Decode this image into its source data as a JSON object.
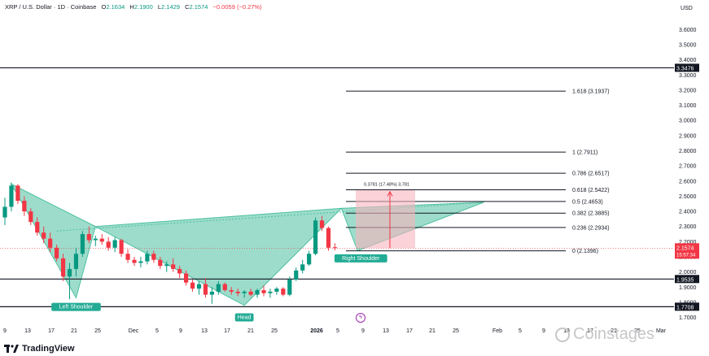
{
  "header": {
    "symbol": "XRP / U.S. Dollar · 1D · Coinbase",
    "open_label": "O",
    "open": "2.1634",
    "high_label": "H",
    "high": "2.1900",
    "low_label": "L",
    "low": "2.1429",
    "close_label": "C",
    "close": "2.1574",
    "change": "−0.0059 (−0.27%)"
  },
  "brand": {
    "tradingview": "TradingView",
    "watermark": "Coinstages"
  },
  "chart_data": {
    "type": "candlestick",
    "y_axis": {
      "unit": "USD",
      "ticks": [
        "3.6000",
        "3.5000",
        "3.4000",
        "3.3000",
        "3.2000",
        "3.1000",
        "3.0000",
        "2.9000",
        "2.8000",
        "2.7000",
        "2.6000",
        "2.5000",
        "2.4000",
        "2.3000",
        "2.2000",
        "2.1000",
        "2.0000",
        "1.9000",
        "1.8000",
        "1.7000"
      ],
      "ylim": [
        1.66,
        3.72
      ]
    },
    "x_axis": {
      "ticks": [
        "9",
        "13",
        "17",
        "21",
        "25",
        "Dec",
        "5",
        "9",
        "13",
        "17",
        "21",
        "25",
        "2026",
        "5",
        "9",
        "13",
        "17",
        "21",
        "25",
        "Feb",
        "5",
        "9",
        "13",
        "17",
        "21",
        "25",
        "Mar"
      ]
    },
    "candles": [
      [
        2.36,
        2.49,
        2.31,
        2.43
      ],
      [
        2.43,
        2.59,
        2.4,
        2.57
      ],
      [
        2.57,
        2.58,
        2.45,
        2.47
      ],
      [
        2.47,
        2.5,
        2.37,
        2.4
      ],
      [
        2.4,
        2.42,
        2.31,
        2.33
      ],
      [
        2.33,
        2.36,
        2.24,
        2.26
      ],
      [
        2.26,
        2.3,
        2.19,
        2.22
      ],
      [
        2.22,
        2.26,
        2.13,
        2.16
      ],
      [
        2.16,
        2.18,
        2.07,
        2.09
      ],
      [
        2.09,
        2.12,
        1.94,
        1.97
      ],
      [
        1.97,
        2.06,
        1.82,
        2.02
      ],
      [
        2.02,
        2.16,
        1.97,
        2.12
      ],
      [
        2.12,
        2.27,
        2.1,
        2.25
      ],
      [
        2.25,
        2.3,
        2.19,
        2.21
      ],
      [
        2.21,
        2.24,
        2.17,
        2.22
      ],
      [
        2.22,
        2.25,
        2.18,
        2.2
      ],
      [
        2.2,
        2.23,
        2.14,
        2.16
      ],
      [
        2.16,
        2.23,
        2.13,
        2.21
      ],
      [
        2.21,
        2.22,
        2.1,
        2.12
      ],
      [
        2.12,
        2.15,
        2.06,
        2.08
      ],
      [
        2.08,
        2.1,
        2.04,
        2.06
      ],
      [
        2.06,
        2.1,
        2.03,
        2.07
      ],
      [
        2.07,
        2.14,
        2.05,
        2.12
      ],
      [
        2.12,
        2.14,
        2.06,
        2.08
      ],
      [
        2.08,
        2.1,
        2.02,
        2.04
      ],
      [
        2.04,
        2.07,
        2.0,
        2.05
      ],
      [
        2.05,
        2.09,
        2.0,
        2.02
      ],
      [
        2.02,
        2.04,
        1.96,
        1.99
      ],
      [
        1.99,
        2.01,
        1.91,
        1.93
      ],
      [
        1.93,
        1.95,
        1.87,
        1.89
      ],
      [
        1.89,
        1.94,
        1.85,
        1.92
      ],
      [
        1.92,
        1.96,
        1.83,
        1.85
      ],
      [
        1.85,
        1.9,
        1.79,
        1.87
      ],
      [
        1.87,
        1.94,
        1.85,
        1.92
      ],
      [
        1.92,
        1.93,
        1.87,
        1.88
      ],
      [
        1.88,
        1.9,
        1.85,
        1.87
      ],
      [
        1.87,
        1.89,
        1.84,
        1.86
      ],
      [
        1.86,
        1.88,
        1.83,
        1.87
      ],
      [
        1.87,
        1.89,
        1.84,
        1.85
      ],
      [
        1.85,
        1.89,
        1.83,
        1.88
      ],
      [
        1.88,
        1.91,
        1.84,
        1.86
      ],
      [
        1.86,
        1.89,
        1.83,
        1.87
      ],
      [
        1.87,
        1.9,
        1.85,
        1.89
      ],
      [
        1.89,
        1.9,
        1.84,
        1.85
      ],
      [
        1.85,
        1.97,
        1.84,
        1.95
      ],
      [
        1.95,
        2.03,
        1.94,
        2.01
      ],
      [
        2.01,
        2.08,
        1.99,
        2.05
      ],
      [
        2.05,
        2.14,
        2.04,
        2.12
      ],
      [
        2.12,
        2.36,
        2.11,
        2.34
      ],
      [
        2.34,
        2.37,
        2.27,
        2.29
      ],
      [
        2.29,
        2.3,
        2.14,
        2.16
      ],
      [
        2.1634,
        2.19,
        2.1429,
        2.1574
      ]
    ],
    "levels": [
      {
        "label": "3.3476",
        "value": 3.3476
      },
      {
        "label": "1.9535",
        "value": 1.9535
      },
      {
        "label": "1.7708",
        "value": 1.7708
      }
    ],
    "fibonacci": [
      {
        "label": "1.618 (3.1937)",
        "value": 3.1937
      },
      {
        "label": "1 (2.7911)",
        "value": 2.7911
      },
      {
        "label": "0.786 (2.6517)",
        "value": 2.6517
      },
      {
        "label": "0.618 (2.5422)",
        "value": 2.5422
      },
      {
        "label": "0.5 (2.4653)",
        "value": 2.4653
      },
      {
        "label": "0.382 (2.3885)",
        "value": 2.3885
      },
      {
        "label": "0.236 (2.2934)",
        "value": 2.2934
      },
      {
        "label": "0 (2.1396)",
        "value": 2.1396
      }
    ],
    "price_tag": {
      "price": "2.1574",
      "countdown": "15:57:34",
      "value": 2.1574
    },
    "pattern_labels": [
      "Left Shoulder",
      "Head",
      "Right Shoulder"
    ],
    "measure_label": "0.3781 (17.48%) 3,781",
    "colors": {
      "up": "#089981",
      "down": "#f23645",
      "pattern": "#4dc0a0",
      "label_bg": "#22ab94",
      "measure": "#f7b4bd"
    }
  }
}
